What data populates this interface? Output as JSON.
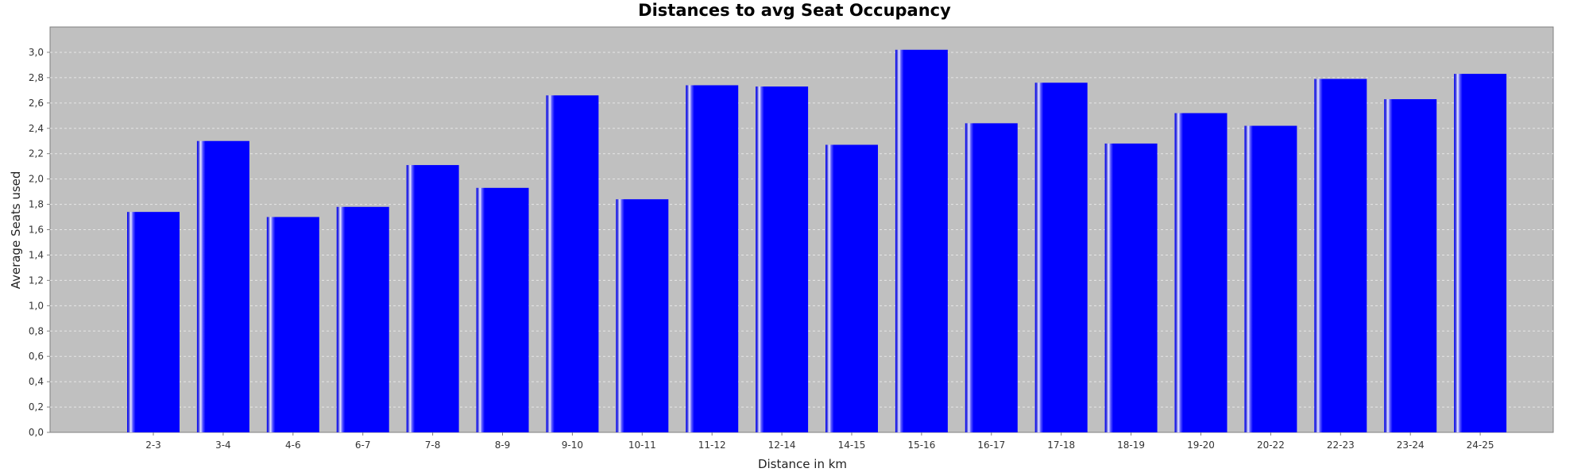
{
  "chart_data": {
    "type": "bar",
    "title": "Distances to avg Seat Occupancy",
    "xlabel": "Distance in km",
    "ylabel": "Average Seats used",
    "categories": [
      "2-3",
      "3-4",
      "4-6",
      "6-7",
      "7-8",
      "8-9",
      "9-10",
      "10-11",
      "11-12",
      "12-14",
      "14-15",
      "15-16",
      "16-17",
      "17-18",
      "18-19",
      "19-20",
      "20-22",
      "22-23",
      "23-24",
      "24-25"
    ],
    "values": [
      1.74,
      2.3,
      1.7,
      1.78,
      2.11,
      1.93,
      2.66,
      1.84,
      2.74,
      2.73,
      2.27,
      3.02,
      2.44,
      2.76,
      2.28,
      2.52,
      2.42,
      2.79,
      2.63,
      2.83
    ],
    "ylim": [
      0,
      3.2
    ],
    "yticks": [
      "0,0",
      "0,2",
      "0,4",
      "0,6",
      "0,8",
      "1,0",
      "1,2",
      "1,4",
      "1,6",
      "1,8",
      "2,0",
      "2,2",
      "2,4",
      "2,6",
      "2,8",
      "3,0"
    ],
    "grid": true,
    "legend": "none",
    "colors": {
      "bar": "#0000ff",
      "plot_background": "#c0c0c0",
      "gridline": "#e6e6e6",
      "axis": "#808080"
    }
  }
}
